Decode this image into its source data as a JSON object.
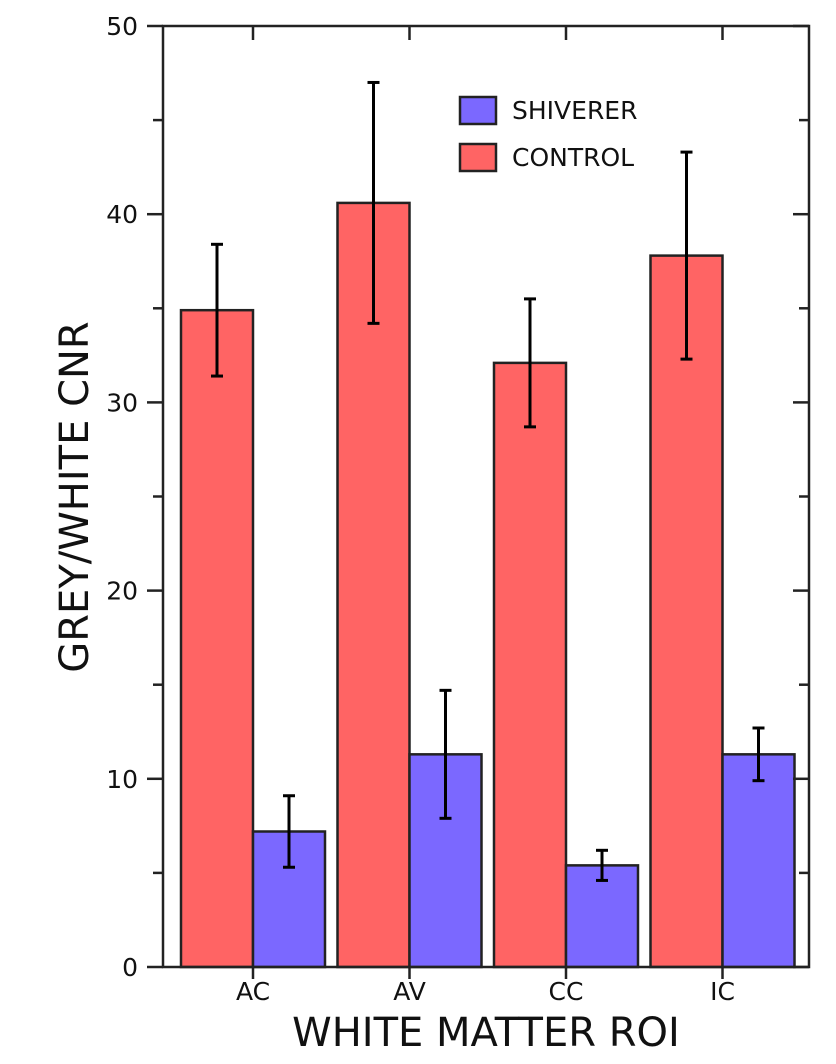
{
  "chart_data": {
    "type": "bar",
    "title": "",
    "xlabel": "WHITE MATTER ROI",
    "ylabel": "GREY/WHITE CNR",
    "categories": [
      "AC",
      "AV",
      "CC",
      "IC"
    ],
    "ylim": [
      0,
      50
    ],
    "yticks": [
      0,
      10,
      20,
      30,
      40,
      50
    ],
    "grid": false,
    "legend_position": "top-right",
    "series": [
      {
        "name": "CONTROL",
        "color": "#ff6464",
        "values": [
          34.9,
          40.6,
          32.1,
          37.8
        ],
        "errors": [
          3.5,
          6.4,
          3.4,
          5.5
        ]
      },
      {
        "name": "SHIVERER",
        "color": "#7b68ff",
        "values": [
          7.2,
          11.3,
          5.4,
          11.3
        ],
        "errors": [
          1.9,
          3.4,
          0.8,
          1.4
        ]
      }
    ],
    "legend_order": [
      "SHIVERER",
      "CONTROL"
    ]
  }
}
